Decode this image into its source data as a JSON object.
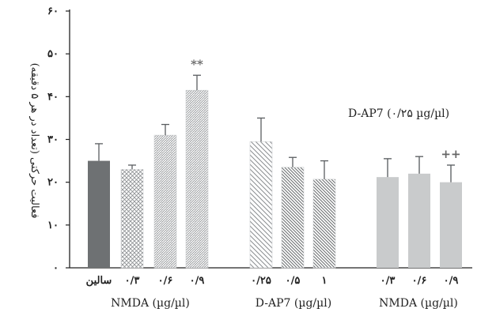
{
  "chart_data": {
    "type": "bar",
    "ylabel": "فعالیت حرکتی (تعداد در هر ۵ دقیقه)",
    "ylim": [
      0,
      60
    ],
    "yticks": [
      0,
      10,
      20,
      30,
      40,
      50,
      60
    ],
    "ytick_labels": [
      "۰",
      "۱۰",
      "۲۰",
      "۳۰",
      "۴۰",
      "۵۰",
      "۶۰"
    ],
    "annotation": "D-AP7 (۰/۲۵ µg/µl)",
    "groups": [
      {
        "label": "NMDA (µg/µl)",
        "bars": [
          {
            "category": "سالین",
            "value": 25,
            "error": 4,
            "pattern": "solid-dark",
            "sig": ""
          },
          {
            "category": "۰/۳",
            "value": 23,
            "error": 1,
            "pattern": "crosshatch",
            "sig": ""
          },
          {
            "category": "۰/۶",
            "value": 31,
            "error": 2.5,
            "pattern": "brick",
            "sig": ""
          },
          {
            "category": "۰/۹",
            "value": 41.5,
            "error": 3.5,
            "pattern": "brick",
            "sig": "**"
          }
        ]
      },
      {
        "label": "D-AP7 (µg/µl)",
        "bars": [
          {
            "category": "۰/۲۵",
            "value": 29.5,
            "error": 5.5,
            "pattern": "diagonal-sparse",
            "sig": ""
          },
          {
            "category": "۰/۵",
            "value": 23.5,
            "error": 2.3,
            "pattern": "diagonal-dense",
            "sig": ""
          },
          {
            "category": "۱",
            "value": 20.7,
            "error": 4.3,
            "pattern": "diagonal-dense",
            "sig": ""
          }
        ]
      },
      {
        "label": "NMDA (µg/µl)",
        "bars": [
          {
            "category": "۰/۳",
            "value": 21.2,
            "error": 4.3,
            "pattern": "solid-light",
            "sig": ""
          },
          {
            "category": "۰/۶",
            "value": 22,
            "error": 4,
            "pattern": "solid-light",
            "sig": ""
          },
          {
            "category": "۰/۹",
            "value": 20,
            "error": 4,
            "pattern": "solid-light",
            "sig": "++"
          }
        ]
      }
    ],
    "colors": {
      "axis": "#222222",
      "solid-dark": "#6e7173",
      "solid-light": "#c9cbcc",
      "hatch": "#8a8d90"
    }
  }
}
